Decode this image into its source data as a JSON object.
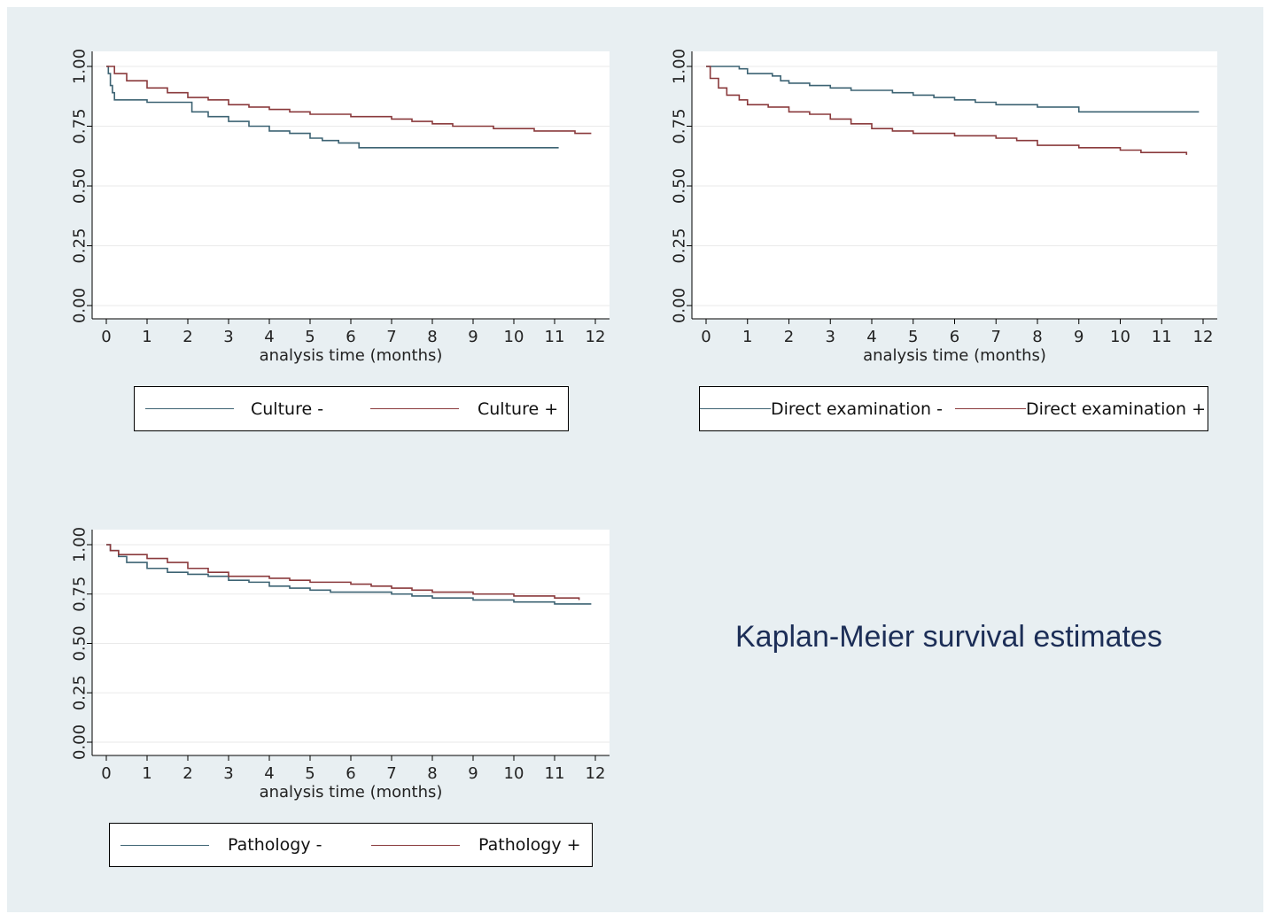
{
  "figure_title": "Kaplan-Meier survival estimates",
  "colors": {
    "figure_background": "#e8eff2",
    "plot_background": "#ffffff",
    "series_negative": "#3d6373",
    "series_positive": "#8a3a3c",
    "title": "#1c2e57"
  },
  "chart_data": [
    {
      "type": "line",
      "xlabel": "analysis time (months)",
      "ylabel": "",
      "xlim": [
        0,
        12
      ],
      "ylim": [
        0,
        1
      ],
      "xticks": [
        "0",
        "1",
        "2",
        "3",
        "4",
        "5",
        "6",
        "7",
        "8",
        "9",
        "10",
        "11",
        "12"
      ],
      "yticks": [
        "0.00",
        "0.25",
        "0.50",
        "0.75",
        "1.00"
      ],
      "grid": true,
      "legend_position": "bottom",
      "series": [
        {
          "name": "Culture -",
          "x": [
            0,
            0.05,
            0.1,
            0.15,
            0.2,
            1.0,
            2.1,
            2.5,
            3.0,
            3.5,
            4.0,
            4.5,
            5.0,
            5.3,
            5.7,
            6.2,
            7.0,
            8.0,
            9.0,
            10.0,
            11.1
          ],
          "y": [
            1.0,
            0.97,
            0.92,
            0.89,
            0.86,
            0.85,
            0.81,
            0.79,
            0.77,
            0.75,
            0.73,
            0.72,
            0.7,
            0.69,
            0.68,
            0.66,
            0.66,
            0.66,
            0.66,
            0.66,
            0.66
          ]
        },
        {
          "name": "Culture +",
          "x": [
            0,
            0.2,
            0.5,
            1.0,
            1.5,
            2.0,
            2.5,
            3.0,
            3.5,
            4.0,
            4.5,
            5.0,
            5.5,
            6.0,
            7.0,
            7.5,
            8.0,
            8.5,
            9.0,
            9.5,
            10.0,
            10.5,
            11.0,
            11.5,
            11.9
          ],
          "y": [
            1.0,
            0.97,
            0.94,
            0.91,
            0.89,
            0.87,
            0.86,
            0.84,
            0.83,
            0.82,
            0.81,
            0.8,
            0.8,
            0.79,
            0.78,
            0.77,
            0.76,
            0.75,
            0.75,
            0.74,
            0.74,
            0.73,
            0.73,
            0.72,
            0.72
          ]
        }
      ]
    },
    {
      "type": "line",
      "xlabel": "analysis time (months)",
      "ylabel": "",
      "xlim": [
        0,
        12
      ],
      "ylim": [
        0,
        1
      ],
      "xticks": [
        "0",
        "1",
        "2",
        "3",
        "4",
        "5",
        "6",
        "7",
        "8",
        "9",
        "10",
        "11",
        "12"
      ],
      "yticks": [
        "0.00",
        "0.25",
        "0.50",
        "0.75",
        "1.00"
      ],
      "grid": true,
      "legend_position": "bottom",
      "series": [
        {
          "name": "Direct examination -",
          "x": [
            0,
            0.8,
            1.0,
            1.6,
            1.8,
            2.0,
            2.5,
            3.0,
            3.5,
            4.5,
            5.0,
            5.5,
            6.0,
            6.5,
            7.0,
            7.5,
            8.0,
            8.5,
            9.0,
            10.0,
            11.0,
            11.9
          ],
          "y": [
            1.0,
            0.99,
            0.97,
            0.96,
            0.94,
            0.93,
            0.92,
            0.91,
            0.9,
            0.89,
            0.88,
            0.87,
            0.86,
            0.85,
            0.84,
            0.84,
            0.83,
            0.83,
            0.81,
            0.81,
            0.81,
            0.81
          ],
          "censor_points": []
        },
        {
          "name": "Direct examination +",
          "x": [
            0,
            0.1,
            0.3,
            0.5,
            0.8,
            1.0,
            1.5,
            2.0,
            2.5,
            3.0,
            3.5,
            4.0,
            4.5,
            5.0,
            5.5,
            6.0,
            6.5,
            7.0,
            7.5,
            8.0,
            8.5,
            9.0,
            9.5,
            10.0,
            10.5,
            11.0,
            11.6
          ],
          "y": [
            1.0,
            0.95,
            0.91,
            0.88,
            0.86,
            0.84,
            0.83,
            0.81,
            0.8,
            0.78,
            0.76,
            0.74,
            0.73,
            0.72,
            0.72,
            0.71,
            0.71,
            0.7,
            0.69,
            0.67,
            0.67,
            0.66,
            0.66,
            0.65,
            0.64,
            0.64,
            0.63
          ]
        }
      ]
    },
    {
      "type": "line",
      "xlabel": "analysis time (months)",
      "ylabel": "",
      "xlim": [
        0,
        12
      ],
      "ylim": [
        0,
        1
      ],
      "xticks": [
        "0",
        "1",
        "2",
        "3",
        "4",
        "5",
        "6",
        "7",
        "8",
        "9",
        "10",
        "11",
        "12"
      ],
      "yticks": [
        "0.00",
        "0.25",
        "0.50",
        "0.75",
        "1.00"
      ],
      "grid": true,
      "legend_position": "bottom",
      "series": [
        {
          "name": "Pathology -",
          "x": [
            0,
            0.1,
            0.3,
            0.5,
            1.0,
            1.5,
            2.0,
            2.5,
            3.0,
            3.5,
            4.0,
            4.5,
            5.0,
            5.5,
            6.0,
            7.0,
            7.5,
            8.0,
            9.0,
            10.0,
            11.0,
            11.9
          ],
          "y": [
            1.0,
            0.97,
            0.94,
            0.91,
            0.88,
            0.86,
            0.85,
            0.84,
            0.82,
            0.81,
            0.79,
            0.78,
            0.77,
            0.76,
            0.76,
            0.75,
            0.74,
            0.73,
            0.72,
            0.71,
            0.7,
            0.7
          ]
        },
        {
          "name": "Pathology +",
          "x": [
            0,
            0.1,
            0.3,
            1.0,
            1.5,
            2.0,
            2.5,
            3.0,
            4.0,
            4.5,
            5.0,
            5.5,
            6.0,
            6.5,
            7.0,
            7.5,
            8.0,
            8.5,
            9.0,
            9.5,
            10.0,
            10.5,
            11.0,
            11.6
          ],
          "y": [
            1.0,
            0.97,
            0.95,
            0.93,
            0.91,
            0.88,
            0.86,
            0.84,
            0.83,
            0.82,
            0.81,
            0.81,
            0.8,
            0.79,
            0.78,
            0.77,
            0.76,
            0.76,
            0.75,
            0.75,
            0.74,
            0.74,
            0.73,
            0.72
          ]
        }
      ]
    }
  ]
}
